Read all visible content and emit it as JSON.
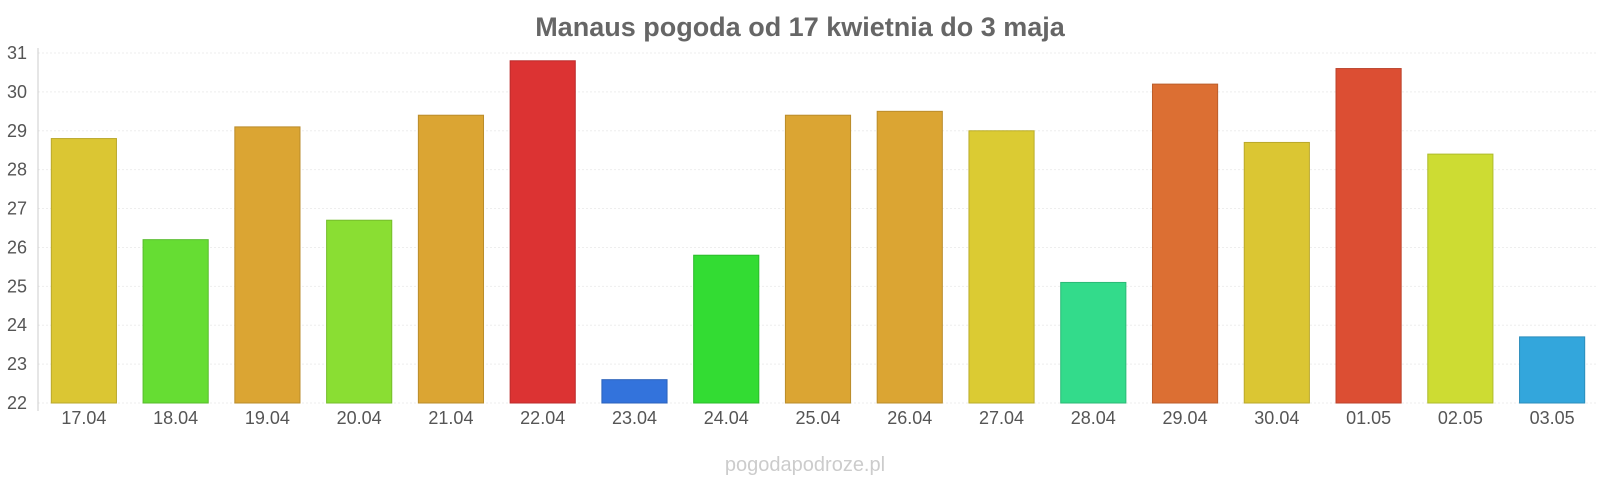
{
  "chart_data": {
    "type": "bar",
    "title": "Manaus pogoda od 17 kwietnia do 3 maja",
    "xlabel": "",
    "ylabel": "",
    "categories": [
      "17.04",
      "18.04",
      "19.04",
      "20.04",
      "21.04",
      "22.04",
      "23.04",
      "24.04",
      "25.04",
      "26.04",
      "27.04",
      "28.04",
      "29.04",
      "30.04",
      "01.05",
      "02.05",
      "03.05"
    ],
    "values": [
      28.8,
      26.2,
      29.1,
      26.7,
      29.4,
      30.8,
      22.6,
      25.8,
      29.4,
      29.5,
      29.0,
      25.1,
      30.2,
      28.7,
      30.6,
      28.4,
      23.7
    ],
    "colors": [
      "#dbc633",
      "#66dd33",
      "#dba533",
      "#8ade33",
      "#dba533",
      "#dc3333",
      "#3373dc",
      "#33dc33",
      "#dba533",
      "#dba533",
      "#dbcb33",
      "#33db8b",
      "#dc6f33",
      "#dbc633",
      "#dc4e33",
      "#cddc33",
      "#33a6dc"
    ],
    "ylim": [
      22,
      31
    ],
    "yticks": [
      22,
      23,
      24,
      25,
      26,
      27,
      28,
      29,
      30,
      31
    ],
    "grid": true,
    "legend": "none"
  },
  "watermark": "pogodapodroze.pl"
}
